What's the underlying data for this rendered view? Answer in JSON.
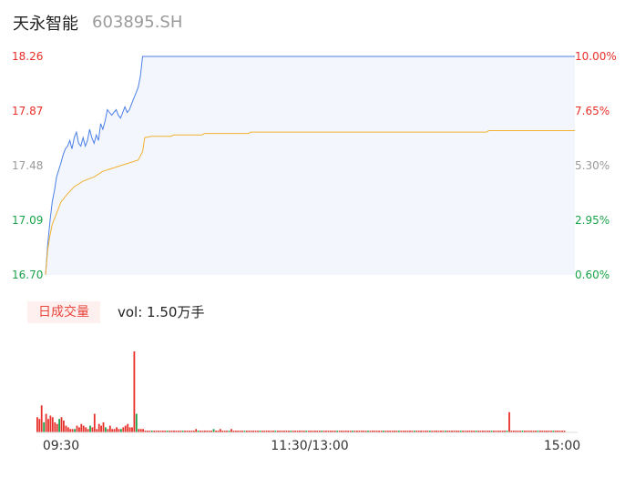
{
  "header": {
    "name": "天永智能",
    "code": "603895.SH"
  },
  "colors": {
    "price": "#4a7fe6",
    "avg": "#f2b233",
    "up": "#e8302a",
    "down": "#1aa34a",
    "neutral": "#999999"
  },
  "volume": {
    "badge": "日成交量",
    "label": "vol: 1.50万手"
  },
  "chart_data": {
    "type": "line",
    "title": "",
    "y_left_ticks": [
      "18.26",
      "17.87",
      "17.48",
      "17.09",
      "16.70"
    ],
    "y_right_ticks": [
      "10.00%",
      "7.65%",
      "5.30%",
      "2.95%",
      "0.60%"
    ],
    "x_ticks": [
      "09:30",
      "11:30/13:00",
      "15:00"
    ],
    "ylim": [
      16.7,
      18.26
    ],
    "total_minutes": 240,
    "series": [
      {
        "key": "price",
        "points": [
          [
            0,
            16.7
          ],
          [
            1,
            16.92
          ],
          [
            2,
            17.08
          ],
          [
            3,
            17.22
          ],
          [
            4,
            17.3
          ],
          [
            5,
            17.4
          ],
          [
            6,
            17.45
          ],
          [
            7,
            17.5
          ],
          [
            8,
            17.56
          ],
          [
            9,
            17.6
          ],
          [
            10,
            17.62
          ],
          [
            11,
            17.66
          ],
          [
            12,
            17.6
          ],
          [
            13,
            17.68
          ],
          [
            14,
            17.72
          ],
          [
            15,
            17.64
          ],
          [
            16,
            17.62
          ],
          [
            17,
            17.68
          ],
          [
            18,
            17.62
          ],
          [
            19,
            17.66
          ],
          [
            20,
            17.74
          ],
          [
            21,
            17.68
          ],
          [
            22,
            17.64
          ],
          [
            23,
            17.7
          ],
          [
            24,
            17.66
          ],
          [
            25,
            17.78
          ],
          [
            26,
            17.74
          ],
          [
            27,
            17.8
          ],
          [
            28,
            17.88
          ],
          [
            29,
            17.86
          ],
          [
            30,
            17.84
          ],
          [
            31,
            17.86
          ],
          [
            32,
            17.88
          ],
          [
            33,
            17.84
          ],
          [
            34,
            17.82
          ],
          [
            35,
            17.86
          ],
          [
            36,
            17.9
          ],
          [
            37,
            17.86
          ],
          [
            38,
            17.88
          ],
          [
            39,
            17.92
          ],
          [
            40,
            17.96
          ],
          [
            41,
            18.0
          ],
          [
            42,
            18.04
          ],
          [
            43,
            18.12
          ],
          [
            44,
            18.26
          ],
          [
            50,
            18.26
          ],
          [
            100,
            18.26
          ],
          [
            150,
            18.26
          ],
          [
            200,
            18.26
          ],
          [
            240,
            18.26
          ]
        ]
      },
      {
        "key": "avg",
        "points": [
          [
            0,
            16.7
          ],
          [
            1,
            16.88
          ],
          [
            2,
            16.98
          ],
          [
            3,
            17.06
          ],
          [
            5,
            17.14
          ],
          [
            7,
            17.22
          ],
          [
            10,
            17.28
          ],
          [
            13,
            17.33
          ],
          [
            17,
            17.37
          ],
          [
            22,
            17.4
          ],
          [
            26,
            17.44
          ],
          [
            30,
            17.46
          ],
          [
            34,
            17.48
          ],
          [
            38,
            17.5
          ],
          [
            42,
            17.52
          ],
          [
            44,
            17.58
          ],
          [
            45,
            17.68
          ],
          [
            48,
            17.69
          ],
          [
            57,
            17.69
          ],
          [
            58,
            17.7
          ],
          [
            71,
            17.7
          ],
          [
            72,
            17.71
          ],
          [
            92,
            17.71
          ],
          [
            93,
            17.72
          ],
          [
            122,
            17.72
          ],
          [
            123,
            17.72
          ],
          [
            200,
            17.72
          ],
          [
            201,
            17.73
          ],
          [
            240,
            17.73
          ]
        ]
      }
    ],
    "volume_bars": [
      9,
      8,
      16,
      6,
      11,
      8,
      10,
      9,
      6,
      5,
      8,
      9,
      7,
      4,
      3,
      2,
      2,
      2,
      4,
      3,
      5,
      4,
      3,
      2,
      4,
      3,
      11,
      2,
      5,
      4,
      6,
      3,
      2,
      4,
      2,
      2,
      3,
      2,
      2,
      3,
      4,
      5,
      3,
      3,
      48,
      11,
      2,
      2,
      2,
      1,
      1,
      1,
      1,
      1,
      1,
      1,
      1,
      1,
      1,
      1,
      1,
      1,
      1,
      1,
      1,
      1,
      1,
      1,
      1,
      1,
      1,
      1,
      2,
      1,
      1,
      1,
      1,
      1,
      1,
      1,
      2,
      1,
      1,
      2,
      1,
      1,
      1,
      1,
      2,
      1,
      1,
      1,
      1,
      1,
      1,
      1,
      1,
      1,
      1,
      1,
      1,
      1,
      1,
      1,
      1,
      1,
      1,
      1,
      1,
      1,
      1,
      1,
      1,
      1,
      1,
      1,
      1,
      1,
      1,
      1,
      1,
      1,
      1,
      1,
      1,
      1,
      1,
      1,
      1,
      1,
      1,
      1,
      1,
      1,
      1,
      1,
      1,
      1,
      1,
      1,
      1,
      1,
      1,
      1,
      1,
      1,
      1,
      1,
      1,
      1,
      1,
      1,
      1,
      1,
      1,
      1,
      1,
      1,
      1,
      1,
      1,
      1,
      1,
      1,
      1,
      1,
      1,
      1,
      1,
      1,
      1,
      1,
      1,
      1,
      1,
      1,
      1,
      1,
      1,
      1,
      1,
      1,
      1,
      1,
      1,
      1,
      1,
      1,
      1,
      1,
      1,
      1,
      1,
      1,
      1,
      1,
      1,
      1,
      1,
      1,
      1,
      1,
      1,
      1,
      1,
      1,
      1,
      1,
      1,
      1,
      1,
      1,
      1,
      1,
      12,
      1,
      1,
      1,
      1,
      1,
      1,
      1,
      1,
      1,
      1,
      1,
      1,
      1,
      1,
      1,
      1,
      1,
      1,
      1,
      1,
      1,
      1,
      1,
      1,
      1
    ]
  }
}
